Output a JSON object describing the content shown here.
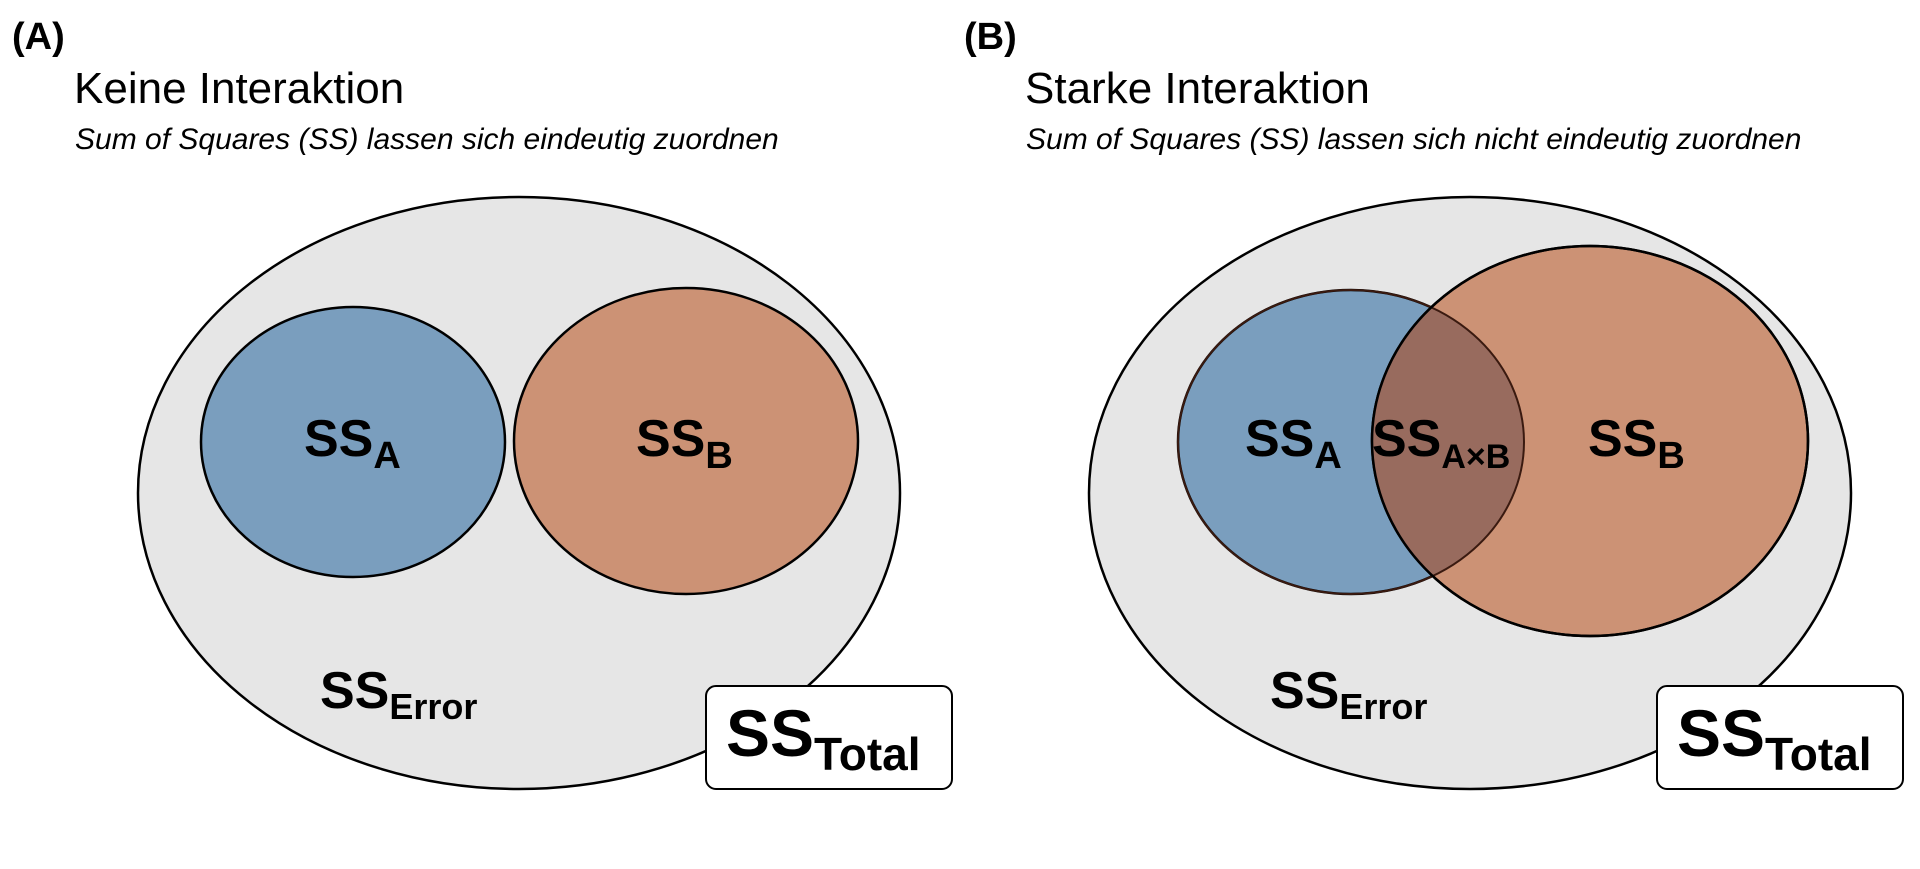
{
  "colors": {
    "total": "#e6e6e6",
    "a": "#7a9ebe",
    "b": "#cc9275",
    "overlap": "#986b5e",
    "stroke": "#000000",
    "overlap_stroke": "#3a1a10"
  },
  "panels": [
    {
      "tag": "(A)",
      "title": "Keine Interaktion",
      "subtitle": "Sum of Squares (SS) lassen sich eindeutig zuordnen",
      "labels": {
        "a": {
          "base": "SS",
          "sub": "A"
        },
        "b": {
          "base": "SS",
          "sub": "B"
        },
        "error": {
          "base": "SS",
          "sub": "Error"
        },
        "total": {
          "base": "SS",
          "sub": "Total"
        }
      }
    },
    {
      "tag": "(B)",
      "title": "Starke Interaktion",
      "subtitle": "Sum of Squares (SS) lassen sich nicht eindeutig zuordnen",
      "labels": {
        "a": {
          "base": "SS",
          "sub": "A"
        },
        "b": {
          "base": "SS",
          "sub": "B"
        },
        "ab": {
          "base": "SS",
          "sub": "A×B"
        },
        "error": {
          "base": "SS",
          "sub": "Error"
        },
        "total": {
          "base": "SS",
          "sub": "Total"
        }
      }
    }
  ]
}
